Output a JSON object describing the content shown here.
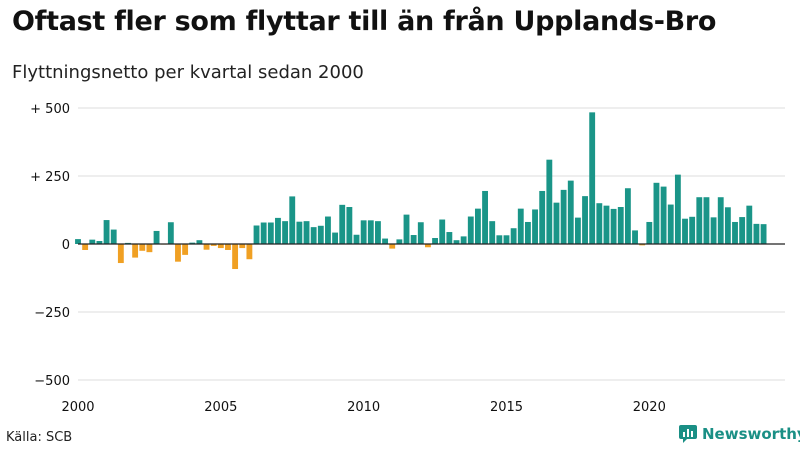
{
  "chart_data": {
    "type": "bar",
    "title": "Oftast fler som flyttar till än från Upplands-Bro",
    "subtitle": "Flyttningsnetto per kvartal sedan 2000",
    "xlabel": "",
    "ylabel": "",
    "x_start": 2000,
    "x_step": 0.25,
    "xlim": [
      2000,
      2024.75
    ],
    "ylim": [
      -500,
      500
    ],
    "y_ticks": [
      500,
      250,
      0,
      -250,
      -500
    ],
    "y_tick_labels": [
      "+ 500",
      "+ 250",
      "0",
      "−250",
      "−500"
    ],
    "x_ticks": [
      2000,
      2005,
      2010,
      2015,
      2020
    ],
    "x_tick_labels": [
      "2000",
      "2005",
      "2010",
      "2015",
      "2020"
    ],
    "grid": true,
    "colors": {
      "positive": "#1a9588",
      "negative": "#f0a023"
    },
    "values": [
      18,
      -22,
      16,
      11,
      88,
      53,
      -70,
      4,
      -50,
      -25,
      -30,
      48,
      -2,
      80,
      -65,
      -40,
      5,
      14,
      -21,
      -7,
      -15,
      -22,
      -92,
      -15,
      -56,
      68,
      79,
      79,
      96,
      84,
      175,
      82,
      84,
      62,
      67,
      101,
      42,
      144,
      136,
      34,
      87,
      87,
      84,
      20,
      -17,
      17,
      108,
      33,
      80,
      -12,
      22,
      90,
      44,
      14,
      28,
      101,
      130,
      195,
      84,
      32,
      32,
      58,
      130,
      81,
      127,
      195,
      310,
      152,
      199,
      233,
      97,
      176,
      484,
      150,
      141,
      129,
      136,
      205,
      50,
      -5,
      81,
      225,
      211,
      145,
      255,
      93,
      100,
      172,
      172,
      98,
      172,
      135,
      81,
      99,
      141,
      74,
      73
    ]
  },
  "footer": {
    "source": "Källa: SCB",
    "brand": "Newsworthy",
    "brand_icon": "bar-chart-logo-icon",
    "brand_color": "#1a8f85"
  }
}
